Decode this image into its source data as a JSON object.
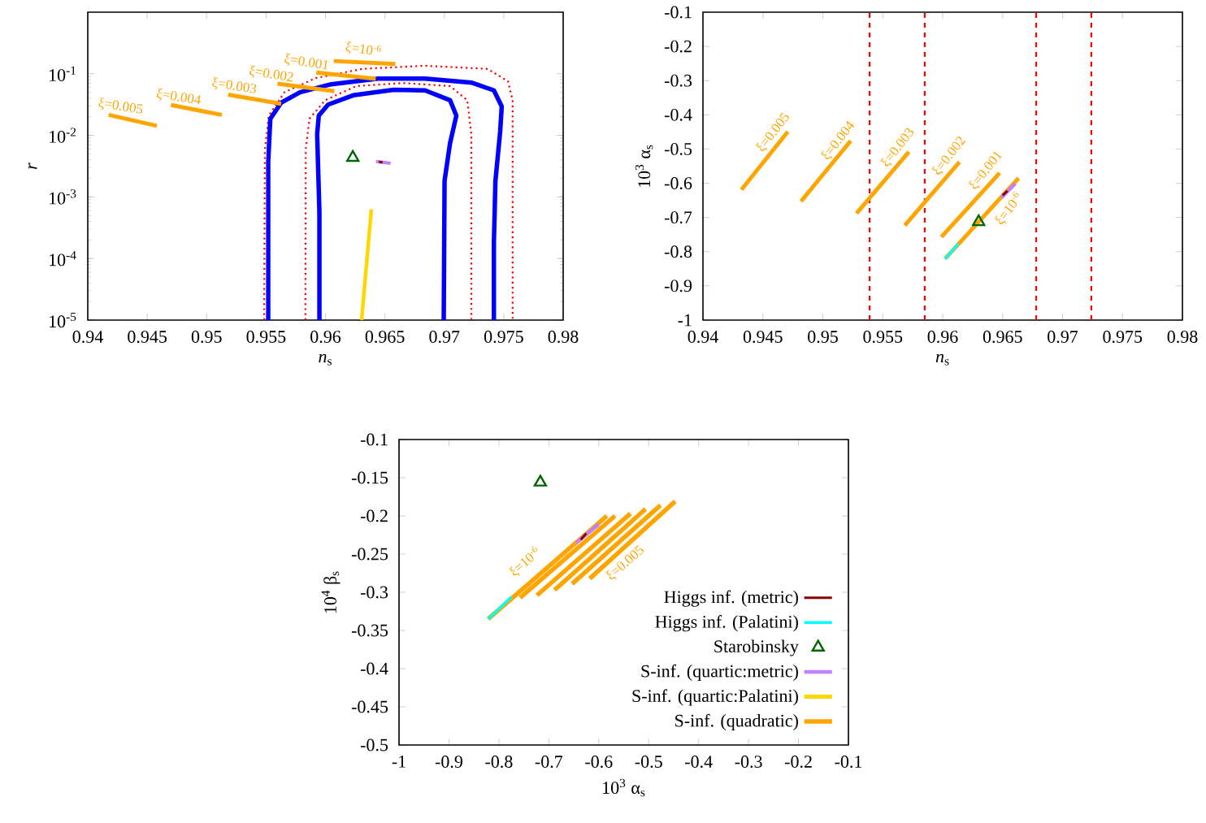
{
  "chart_data": [
    {
      "type": "line",
      "xlabel": "*n*$_{s}$",
      "ylabel": "*r*",
      "log": "y",
      "xlim": [
        0.94,
        0.98
      ],
      "ylim": [
        1e-05,
        1
      ],
      "xticks": [
        0.94,
        0.945,
        0.95,
        0.955,
        0.96,
        0.965,
        0.97,
        0.975,
        0.98
      ],
      "yticks": [
        {
          "value": 1e-05,
          "label": "10$^{-5}$"
        },
        {
          "value": 0.0001,
          "label": "10$^{-4}$"
        },
        {
          "value": 0.001,
          "label": "10$^{-3}$"
        },
        {
          "value": 0.01,
          "label": "10$^{-2}$"
        },
        {
          "value": 0.1,
          "label": "10$^{-1}$"
        }
      ],
      "series": [
        {
          "color": "#8b0000",
          "x": [
            0.9645,
            0.9648
          ],
          "values": [
            0.0037,
            0.00365
          ]
        },
        {
          "type": "scatter",
          "marker": "triangle",
          "color": "#006400",
          "x": [
            0.9623
          ],
          "values": [
            0.00436
          ]
        },
        {
          "color": "#c080ff",
          "x": [
            0.96425,
            0.96548
          ],
          "values": [
            0.00376,
            0.00351
          ]
        },
        {
          "color": "#ffd700",
          "x": [
            0.96304,
            0.96386
          ],
          "values": [
            1e-05,
            0.00063
          ]
        },
        {
          "color": "#ffa500",
          "x": [
            0.94176,
            0.94581,
            null,
            0.947,
            0.95128,
            null,
            0.95181,
            0.95627,
            null,
            0.95597,
            0.96075,
            null,
            0.95923,
            0.96423,
            null,
            0.9607,
            0.96588
          ],
          "values": [
            0.0215,
            0.0143,
            null,
            0.0311,
            0.0215,
            null,
            0.0457,
            0.0326,
            null,
            0.0689,
            0.0521,
            null,
            0.105,
            0.0828,
            null,
            0.161,
            0.144
          ]
        },
        {
          "color": "#0000ff",
          "x": [
            0.95518,
            0.95518,
            0.95536,
            0.95627,
            0.95785,
            0.96049,
            0.96444,
            0.96838,
            0.97233,
            0.97417,
            0.97483,
            0.9747,
            0.9743,
            0.97417,
            0.97417,
            null,
            0.95949,
            0.95949,
            0.9593,
            0.95944,
            0.96022,
            0.96233,
            0.96575,
            0.96838,
            0.97048,
            0.97101,
            0.97048,
            0.97002,
            0.96995
          ],
          "values": [
            1e-05,
            0.00372,
            0.0186,
            0.0339,
            0.0501,
            0.0676,
            0.0832,
            0.0832,
            0.0716,
            0.0537,
            0.0295,
            0.0117,
            0.00182,
            0.000178,
            1e-05,
            null,
            1e-05,
            0.000562,
            0.0105,
            0.0209,
            0.0316,
            0.0447,
            0.055,
            0.0537,
            0.0372,
            0.0209,
            0.00741,
            0.00182,
            1e-05
          ]
        },
        {
          "color": "#ff0000",
          "line_style": "dotted",
          "x": [
            0.95484,
            0.9549,
            0.95523,
            0.95655,
            0.95918,
            0.96311,
            0.96838,
            0.97364,
            0.97535,
            0.97575,
            0.97575,
            null,
            0.95831,
            0.95834,
            0.95865,
            0.95997,
            0.9626,
            0.96653,
            0.97048,
            0.97193,
            0.97227,
            0.97227
          ],
          "values": [
            1e-05,
            0.00589,
            0.0209,
            0.0501,
            0.0851,
            0.12,
            0.135,
            0.12,
            0.0759,
            0.0372,
            1e-05,
            null,
            1e-05,
            0.00589,
            0.0186,
            0.0372,
            0.0631,
            0.0708,
            0.0631,
            0.0372,
            0.0105,
            1e-05
          ]
        }
      ],
      "annotations": [
        "ξ=0.005",
        "ξ=0.004",
        "ξ=0.003",
        "ξ=0.002",
        "ξ=0.001",
        "ξ=10$^{-6}$"
      ]
    },
    {
      "type": "line",
      "xlabel": "*n*$_{s}$",
      "ylabel": "10$^{3}$ α$_{s}$",
      "xlim": [
        0.94,
        0.98
      ],
      "ylim": [
        -1,
        -0.1
      ],
      "xticks": [
        0.94,
        0.945,
        0.95,
        0.955,
        0.96,
        0.965,
        0.97,
        0.975,
        0.98
      ],
      "yticks": [
        -0.1,
        -0.2,
        -0.3,
        -0.4,
        -0.5,
        -0.6,
        -0.7,
        -0.8,
        -0.9,
        -1
      ],
      "series": [
        {
          "color": "#8b0000",
          "x": [
            0.965,
            0.9654
          ],
          "values": [
            -0.635,
            -0.622
          ]
        },
        {
          "color": "#00ffff",
          "x": [
            0.96019,
            0.96131
          ],
          "values": [
            -0.821,
            -0.777
          ]
        },
        {
          "type": "scatter",
          "marker": "triangle",
          "color": "#006400",
          "x": [
            0.963
          ],
          "values": [
            -0.713
          ]
        },
        {
          "color": "#c080ff",
          "x": [
            0.9649,
            0.96606
          ],
          "values": [
            -0.642,
            -0.601
          ]
        },
        {
          "color": "#ffa500",
          "x": [
            0.94321,
            0.94708,
            null,
            0.94818,
            0.95232,
            null,
            0.95281,
            0.95718,
            null,
            0.95684,
            0.9614,
            null,
            0.95989,
            0.96475,
            null,
            0.96019,
            0.96633
          ],
          "values": [
            -0.619,
            -0.449,
            null,
            -0.653,
            -0.476,
            null,
            -0.688,
            -0.508,
            null,
            -0.723,
            -0.538,
            null,
            -0.757,
            -0.57,
            null,
            -0.821,
            -0.585
          ]
        }
      ],
      "ref_lines": [
        {
          "axis": "x",
          "value": 0.9539,
          "color": "#ff0000",
          "line_style": "dashed"
        },
        {
          "axis": "x",
          "value": 0.9585,
          "color": "#ff0000",
          "line_style": "dashed"
        },
        {
          "axis": "x",
          "value": 0.9678,
          "color": "#ff0000",
          "line_style": "dashed"
        },
        {
          "axis": "x",
          "value": 0.9724,
          "color": "#ff0000",
          "line_style": "dashed"
        }
      ],
      "annotations": [
        "ξ=0.005",
        "ξ=0.004",
        "ξ=0.003",
        "ξ=0.002",
        "ξ=0.001",
        "ξ=10$^{-6}$"
      ]
    },
    {
      "type": "line",
      "xlabel": "10$^{3}$ α$_{s}$",
      "ylabel": "10$^{4}$ β$_{s}$",
      "legend": "bottom right",
      "xlim": [
        -1,
        -0.1
      ],
      "ylim": [
        -0.5,
        -0.1
      ],
      "xticks": [
        -1,
        -0.9,
        -0.8,
        -0.7,
        -0.6,
        -0.5,
        -0.4,
        -0.3,
        -0.2,
        -0.1
      ],
      "yticks": [
        -0.1,
        -0.15,
        -0.2,
        -0.25,
        -0.3,
        -0.35,
        -0.4,
        -0.45,
        -0.5
      ],
      "series": [
        {
          "name": "Higgs inf. (metric)",
          "color": "#8b0000",
          "x": [
            -0.636,
            -0.625
          ],
          "values": [
            -0.231,
            -0.223
          ]
        },
        {
          "name": "Higgs inf. (Palatini)",
          "color": "#00ffff",
          "x": [
            -0.8215,
            -0.775
          ],
          "values": [
            -0.335,
            -0.306
          ]
        },
        {
          "name": "Starobinsky",
          "type": "scatter",
          "marker": "triangle",
          "color": "#006400",
          "x": [
            -0.717
          ],
          "values": [
            -0.156
          ]
        },
        {
          "name": "S-inf. (quartic:metric)",
          "color": "#c080ff",
          "x": [
            -0.645,
            -0.6
          ],
          "values": [
            -0.235,
            -0.211
          ]
        },
        {
          "name": "S-inf. (quartic:Palatini)",
          "color": "#ffd700"
        },
        {
          "name": "S-inf. (quadratic)",
          "color": "#ffa500",
          "x": [
            -0.8215,
            -0.5838,
            null,
            -0.7575,
            -0.5675,
            null,
            -0.7238,
            -0.5366,
            null,
            -0.6886,
            -0.5063,
            null,
            -0.6533,
            -0.4764,
            null,
            -0.618,
            -0.4471
          ],
          "values": [
            -0.335,
            -0.2,
            null,
            -0.307,
            -0.2,
            null,
            -0.304,
            -0.197,
            null,
            -0.297,
            -0.191,
            null,
            -0.289,
            -0.186,
            null,
            -0.282,
            -0.181
          ]
        }
      ],
      "annotations": [
        "ξ=10$^{-6}$",
        "ξ=0.005"
      ]
    }
  ]
}
